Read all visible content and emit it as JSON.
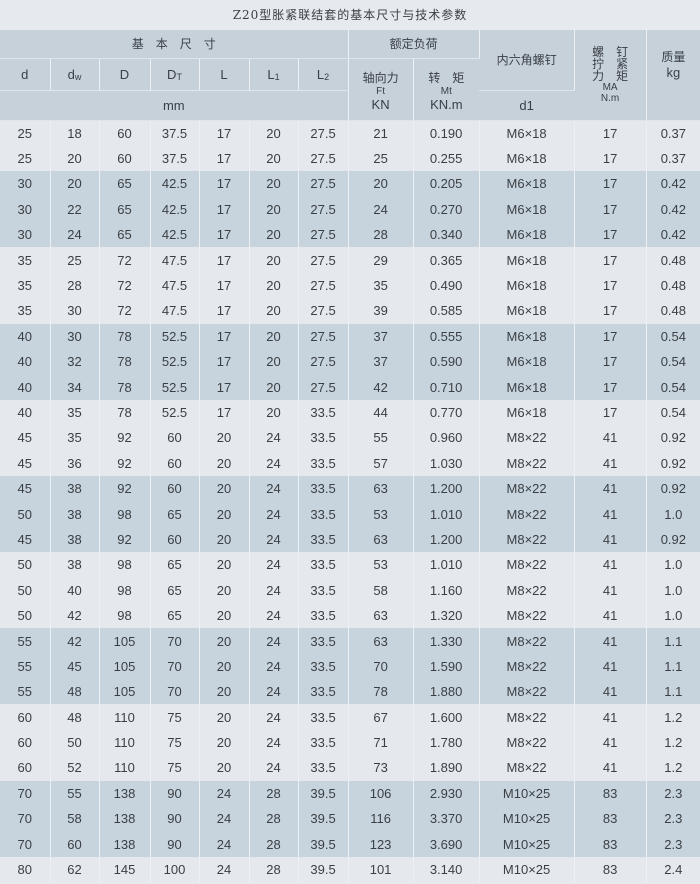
{
  "title": "Z20型胀紧联结套的基本尺寸与技术参数",
  "header": {
    "basic_dims": "基　本　尺　寸",
    "rated_load": "额定负荷",
    "hex_screw": "内六角螺钉",
    "torque_col": {
      "l1": "螺　钉",
      "l2": "拧　紧",
      "l3": "力　矩",
      "sym": "MA",
      "unit": "N.m"
    },
    "mass": "质量",
    "mass_unit": "kg",
    "cols": [
      "d",
      "dw",
      "D",
      "DT",
      "L",
      "L1",
      "L2"
    ],
    "axial": "轴向力",
    "axial_sym": "Ft",
    "axial_unit": "KN",
    "torque": "转　矩",
    "torque_sym": "Mt",
    "torque_unit": "KN.m",
    "mm": "mm",
    "d1": "d1"
  },
  "colors": {
    "light": "#e5e9ee",
    "dark": "#c8d4dd",
    "header": "#c6d1da"
  },
  "rows": [
    [
      "25",
      "18",
      "60",
      "37.5",
      "17",
      "20",
      "27.5",
      "21",
      "0.190",
      "M6×18",
      "17",
      "0.37"
    ],
    [
      "25",
      "20",
      "60",
      "37.5",
      "17",
      "20",
      "27.5",
      "25",
      "0.255",
      "M6×18",
      "17",
      "0.37"
    ],
    [
      "30",
      "20",
      "65",
      "42.5",
      "17",
      "20",
      "27.5",
      "20",
      "0.205",
      "M6×18",
      "17",
      "0.42"
    ],
    [
      "30",
      "22",
      "65",
      "42.5",
      "17",
      "20",
      "27.5",
      "24",
      "0.270",
      "M6×18",
      "17",
      "0.42"
    ],
    [
      "30",
      "24",
      "65",
      "42.5",
      "17",
      "20",
      "27.5",
      "28",
      "0.340",
      "M6×18",
      "17",
      "0.42"
    ],
    [
      "35",
      "25",
      "72",
      "47.5",
      "17",
      "20",
      "27.5",
      "29",
      "0.365",
      "M6×18",
      "17",
      "0.48"
    ],
    [
      "35",
      "28",
      "72",
      "47.5",
      "17",
      "20",
      "27.5",
      "35",
      "0.490",
      "M6×18",
      "17",
      "0.48"
    ],
    [
      "35",
      "30",
      "72",
      "47.5",
      "17",
      "20",
      "27.5",
      "39",
      "0.585",
      "M6×18",
      "17",
      "0.48"
    ],
    [
      "40",
      "30",
      "78",
      "52.5",
      "17",
      "20",
      "27.5",
      "37",
      "0.555",
      "M6×18",
      "17",
      "0.54"
    ],
    [
      "40",
      "32",
      "78",
      "52.5",
      "17",
      "20",
      "27.5",
      "37",
      "0.590",
      "M6×18",
      "17",
      "0.54"
    ],
    [
      "40",
      "34",
      "78",
      "52.5",
      "17",
      "20",
      "27.5",
      "42",
      "0.710",
      "M6×18",
      "17",
      "0.54"
    ],
    [
      "40",
      "35",
      "78",
      "52.5",
      "17",
      "20",
      "33.5",
      "44",
      "0.770",
      "M6×18",
      "17",
      "0.54"
    ],
    [
      "45",
      "35",
      "92",
      "60",
      "20",
      "24",
      "33.5",
      "55",
      "0.960",
      "M8×22",
      "41",
      "0.92"
    ],
    [
      "45",
      "36",
      "92",
      "60",
      "20",
      "24",
      "33.5",
      "57",
      "1.030",
      "M8×22",
      "41",
      "0.92"
    ],
    [
      "45",
      "38",
      "92",
      "60",
      "20",
      "24",
      "33.5",
      "63",
      "1.200",
      "M8×22",
      "41",
      "0.92"
    ],
    [
      "50",
      "38",
      "98",
      "65",
      "20",
      "24",
      "33.5",
      "53",
      "1.010",
      "M8×22",
      "41",
      "1.0"
    ],
    [
      "45",
      "38",
      "92",
      "60",
      "20",
      "24",
      "33.5",
      "63",
      "1.200",
      "M8×22",
      "41",
      "0.92"
    ],
    [
      "50",
      "38",
      "98",
      "65",
      "20",
      "24",
      "33.5",
      "53",
      "1.010",
      "M8×22",
      "41",
      "1.0"
    ],
    [
      "50",
      "40",
      "98",
      "65",
      "20",
      "24",
      "33.5",
      "58",
      "1.160",
      "M8×22",
      "41",
      "1.0"
    ],
    [
      "50",
      "42",
      "98",
      "65",
      "20",
      "24",
      "33.5",
      "63",
      "1.320",
      "M8×22",
      "41",
      "1.0"
    ],
    [
      "55",
      "42",
      "105",
      "70",
      "20",
      "24",
      "33.5",
      "63",
      "1.330",
      "M8×22",
      "41",
      "1.1"
    ],
    [
      "55",
      "45",
      "105",
      "70",
      "20",
      "24",
      "33.5",
      "70",
      "1.590",
      "M8×22",
      "41",
      "1.1"
    ],
    [
      "55",
      "48",
      "105",
      "70",
      "20",
      "24",
      "33.5",
      "78",
      "1.880",
      "M8×22",
      "41",
      "1.1"
    ],
    [
      "60",
      "48",
      "110",
      "75",
      "20",
      "24",
      "33.5",
      "67",
      "1.600",
      "M8×22",
      "41",
      "1.2"
    ],
    [
      "60",
      "50",
      "110",
      "75",
      "20",
      "24",
      "33.5",
      "71",
      "1.780",
      "M8×22",
      "41",
      "1.2"
    ],
    [
      "60",
      "52",
      "110",
      "75",
      "20",
      "24",
      "33.5",
      "73",
      "1.890",
      "M8×22",
      "41",
      "1.2"
    ],
    [
      "70",
      "55",
      "138",
      "90",
      "24",
      "28",
      "39.5",
      "106",
      "2.930",
      "M10×25",
      "83",
      "2.3"
    ],
    [
      "70",
      "58",
      "138",
      "90",
      "24",
      "28",
      "39.5",
      "116",
      "3.370",
      "M10×25",
      "83",
      "2.3"
    ],
    [
      "70",
      "60",
      "138",
      "90",
      "24",
      "28",
      "39.5",
      "123",
      "3.690",
      "M10×25",
      "83",
      "2.3"
    ],
    [
      "80",
      "62",
      "145",
      "100",
      "24",
      "28",
      "39.5",
      "101",
      "3.140",
      "M10×25",
      "83",
      "2.4"
    ]
  ]
}
